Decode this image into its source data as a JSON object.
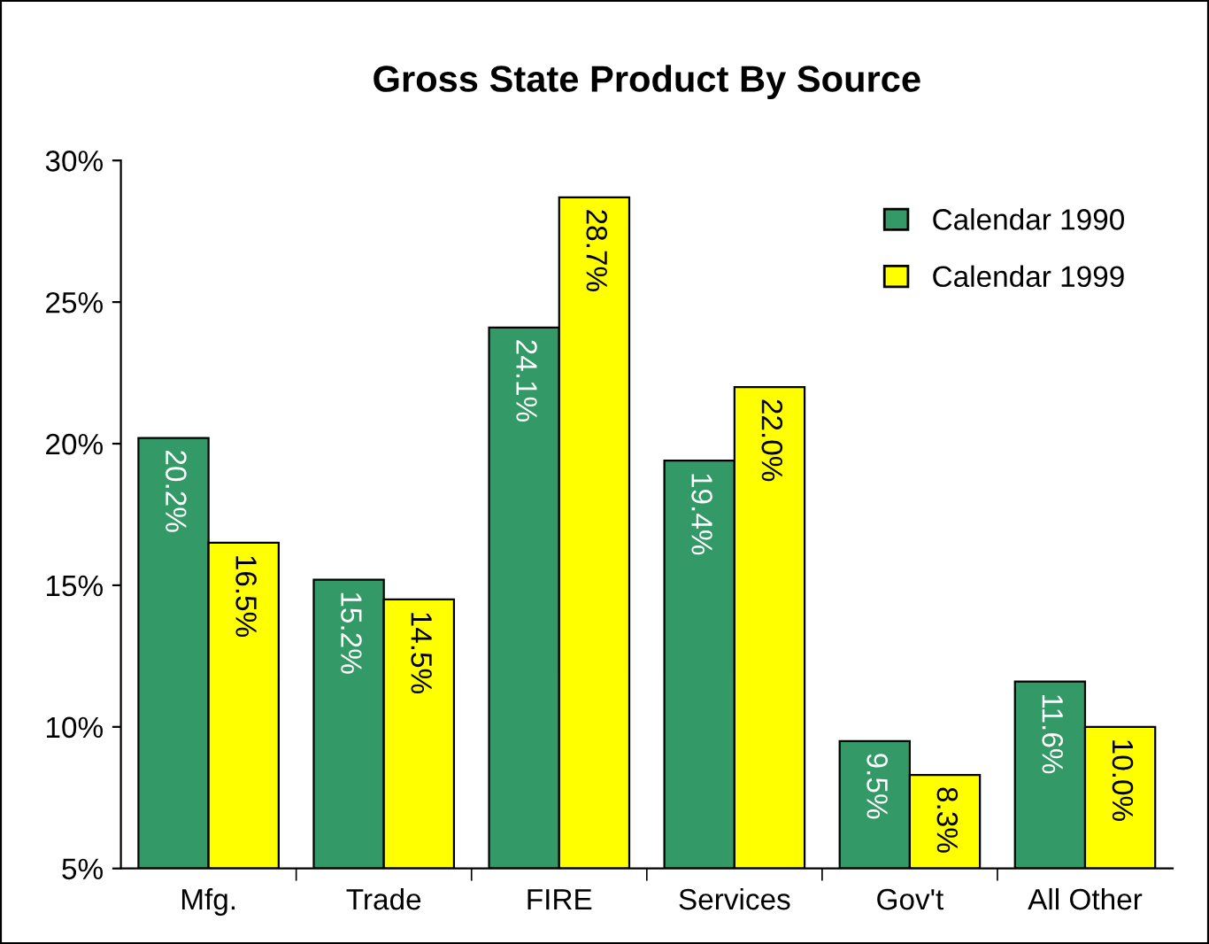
{
  "chart_data": {
    "type": "bar",
    "title": "Gross State Product By Source",
    "categories": [
      "Mfg.",
      "Trade",
      "FIRE",
      "Services",
      "Gov't",
      "All Other"
    ],
    "series": [
      {
        "name": "Calendar 1990",
        "color": "#339966",
        "values": [
          20.2,
          15.2,
          24.1,
          19.4,
          9.5,
          11.6
        ],
        "value_labels": [
          "20.2%",
          "15.2%",
          "24.1%",
          "19.4%",
          "9.5%",
          "11.6%"
        ]
      },
      {
        "name": "Calendar 1999",
        "color": "#ffff00",
        "values": [
          16.5,
          14.5,
          28.7,
          22.0,
          8.3,
          10.0
        ],
        "value_labels": [
          "16.5%",
          "14.5%",
          "28.7%",
          "22.0%",
          "8.3%",
          "10.0%"
        ]
      }
    ],
    "ylim": [
      5,
      30
    ],
    "yticks": [
      {
        "value": 5,
        "label": "5%"
      },
      {
        "value": 10,
        "label": "10%"
      },
      {
        "value": 15,
        "label": "15%"
      },
      {
        "value": 20,
        "label": "20%"
      },
      {
        "value": 25,
        "label": "25%"
      },
      {
        "value": 30,
        "label": "30%"
      }
    ],
    "grid": false,
    "legend": "top right"
  }
}
